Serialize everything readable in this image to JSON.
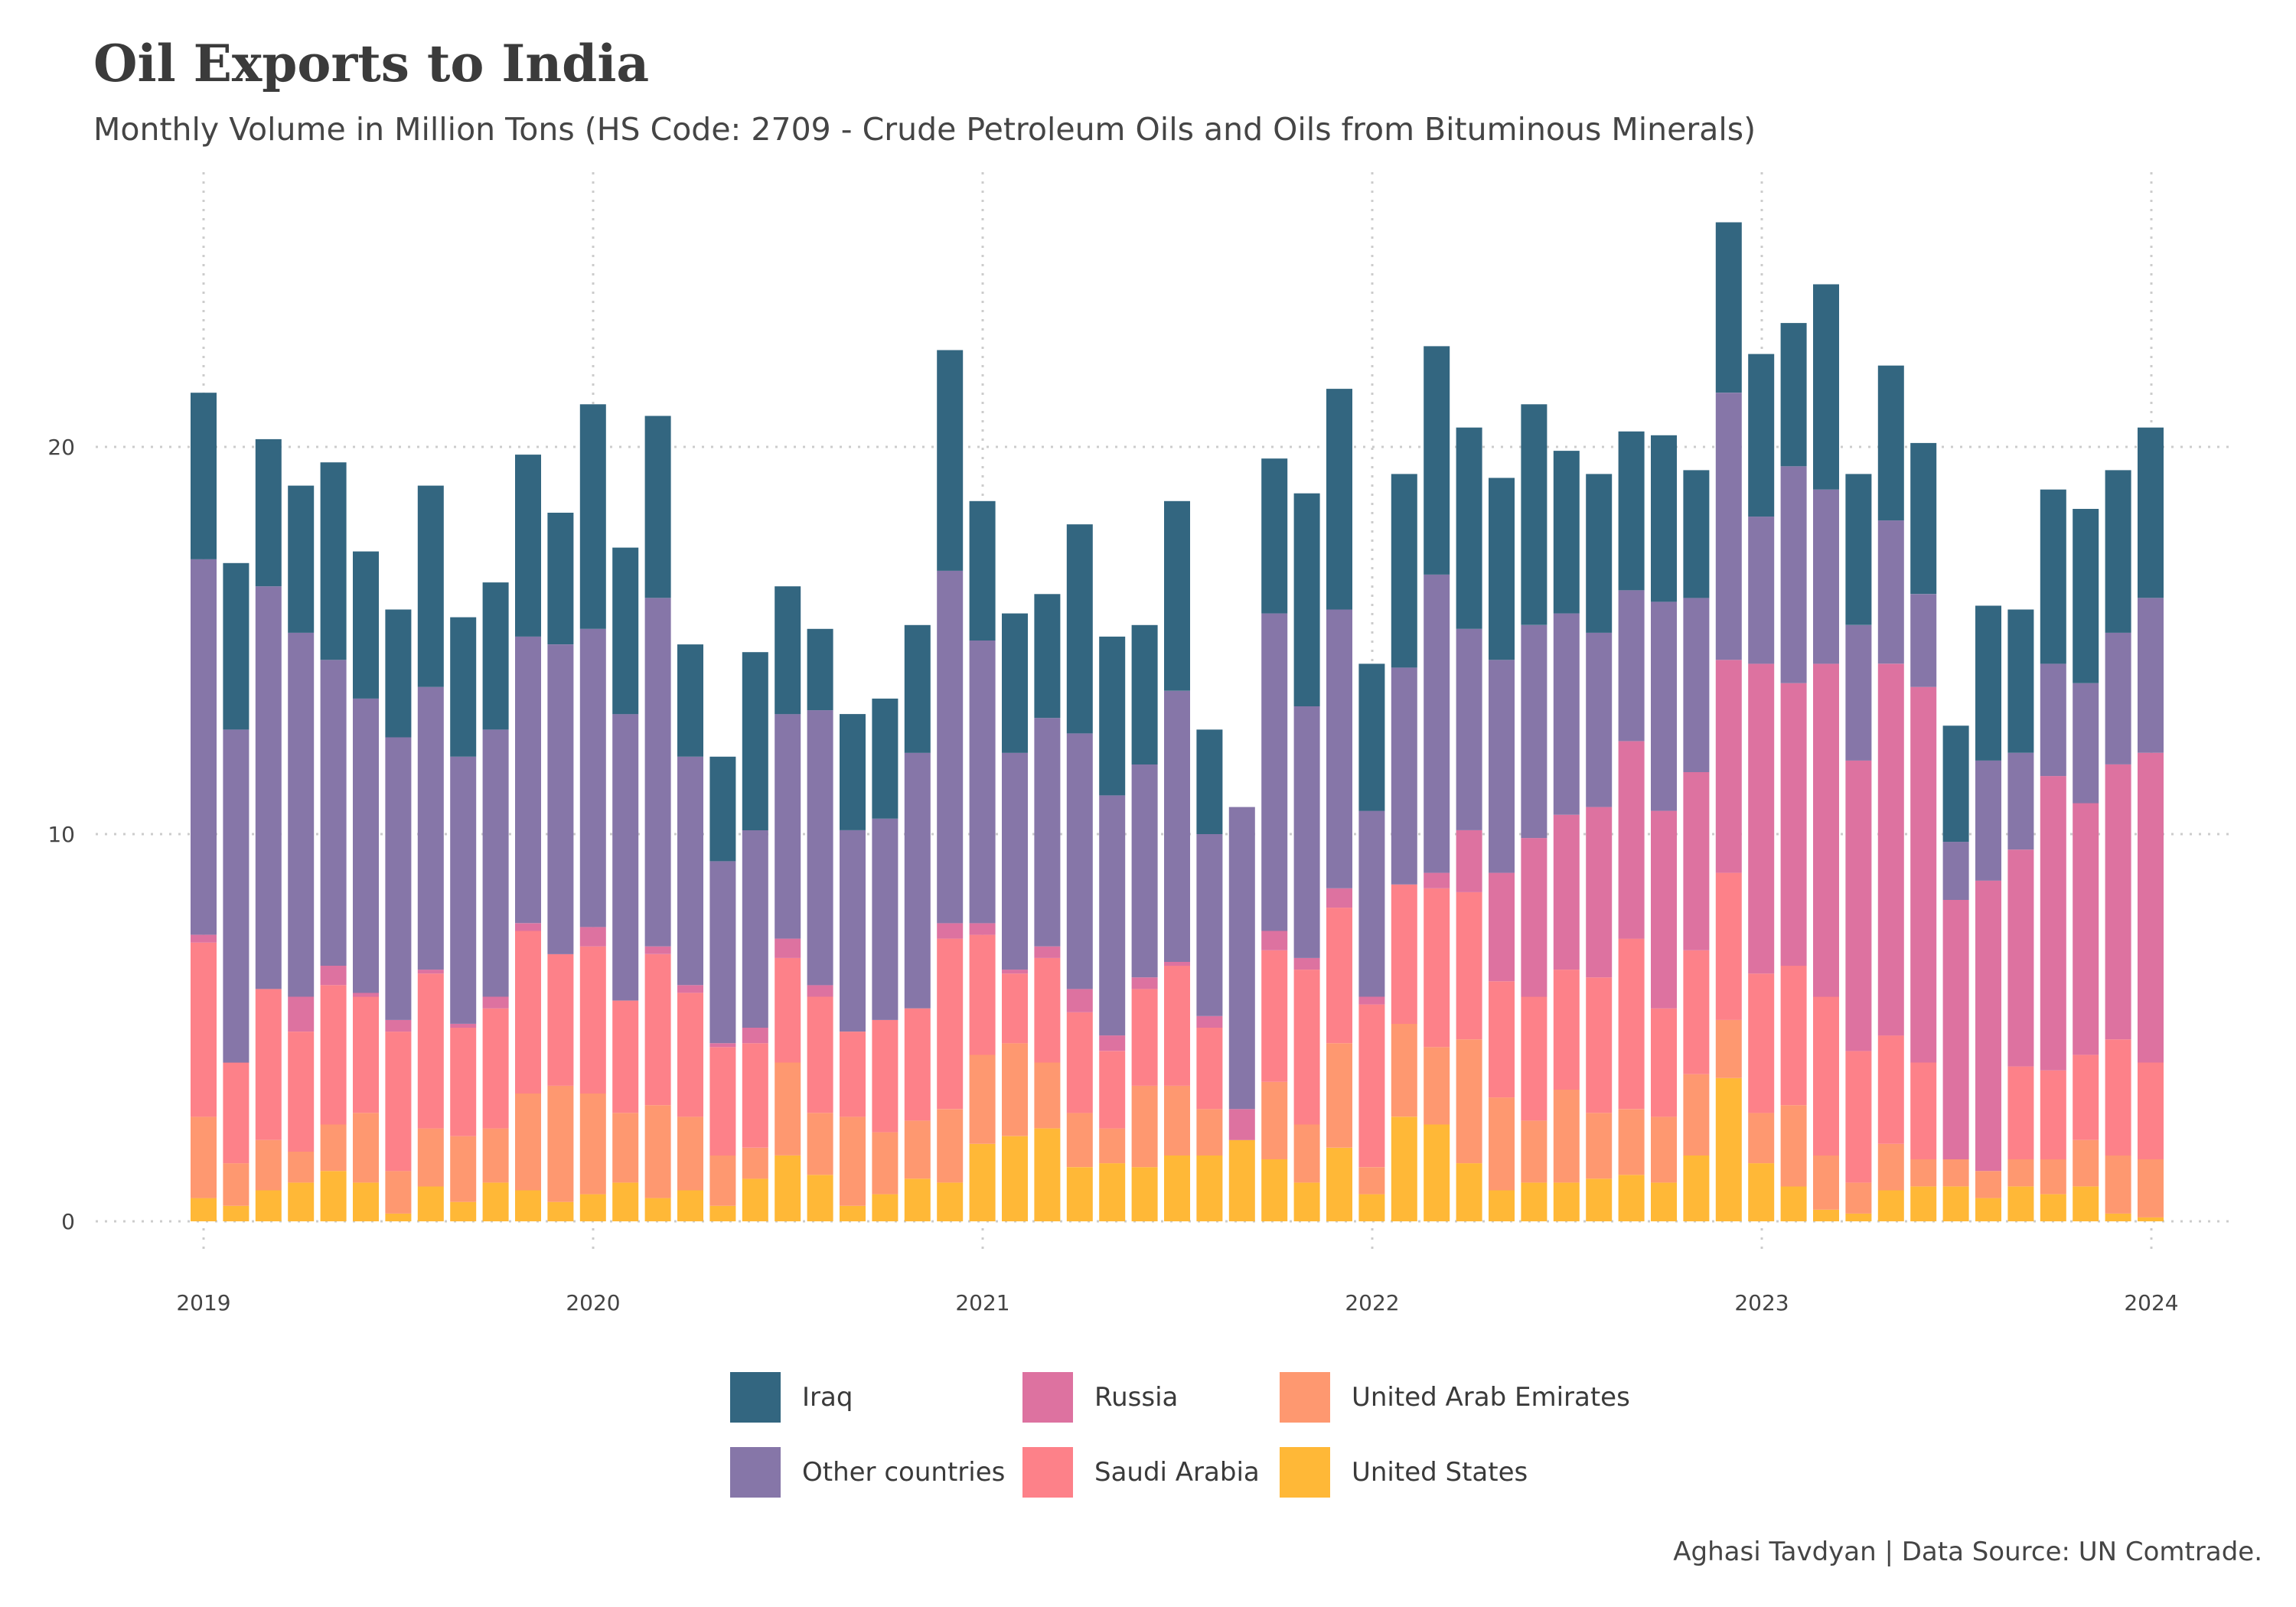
{
  "title": "Oil Exports to India",
  "subtitle": "Monthly Volume in Million Tons (HS Code: 2709 - Crude Petroleum Oils and Oils from Bituminous Minerals)",
  "caption": "Aghasi Tavdyan | Data Source: UN Comtrade.",
  "colors": {
    "Iraq": "#336680",
    "Other countries": "#8676a8",
    "Russia": "#dd72a0",
    "Saudi Arabia": "#fd8189",
    "United Arab Emirates": "#fe9870",
    "United States": "#ffb837",
    "grid": "#cccccc"
  },
  "legend": [
    {
      "name": "Iraq"
    },
    {
      "name": "Russia"
    },
    {
      "name": "United Arab Emirates"
    },
    {
      "name": "Other countries"
    },
    {
      "name": "Saudi Arabia"
    },
    {
      "name": "United States"
    }
  ],
  "chart_data": {
    "type": "bar",
    "stacked": true,
    "xlabel": "",
    "ylabel": "",
    "ylim": [
      0,
      26.5
    ],
    "yticks": [
      0,
      10,
      20
    ],
    "xticks": [
      "2019",
      "2020",
      "2021",
      "2022",
      "2023",
      "2024"
    ],
    "grid": "on (dotted)",
    "legend_position": "bottom",
    "categories": [
      "2019-01",
      "2019-02",
      "2019-03",
      "2019-04",
      "2019-05",
      "2019-06",
      "2019-07",
      "2019-08",
      "2019-09",
      "2019-10",
      "2019-11",
      "2019-12",
      "2020-01",
      "2020-02",
      "2020-03",
      "2020-04",
      "2020-05",
      "2020-06",
      "2020-07",
      "2020-08",
      "2020-09",
      "2020-10",
      "2020-11",
      "2020-12",
      "2021-01",
      "2021-02",
      "2021-03",
      "2021-04",
      "2021-05",
      "2021-06",
      "2021-07",
      "2021-08",
      "2021-09",
      "2021-10",
      "2021-11",
      "2021-12",
      "2022-01",
      "2022-02",
      "2022-03",
      "2022-04",
      "2022-05",
      "2022-06",
      "2022-07",
      "2022-08",
      "2022-09",
      "2022-10",
      "2022-11",
      "2022-12",
      "2023-01",
      "2023-02",
      "2023-03",
      "2023-04",
      "2023-05",
      "2023-06",
      "2023-07",
      "2023-08",
      "2023-09",
      "2023-10",
      "2023-11",
      "2023-12",
      "2024-01"
    ],
    "series": [
      {
        "name": "United States",
        "values": [
          0.6,
          0.4,
          0.8,
          1.0,
          1.3,
          1.0,
          0.2,
          0.9,
          0.5,
          1.0,
          0.8,
          0.5,
          0.7,
          1.0,
          0.6,
          0.8,
          0.4,
          1.1,
          1.7,
          1.2,
          0.4,
          0.7,
          1.1,
          1.0,
          2.0,
          2.2,
          2.4,
          1.4,
          1.5,
          1.4,
          1.7,
          1.7,
          2.1,
          1.6,
          1.0,
          1.9,
          0.7,
          2.7,
          2.5,
          1.5,
          0.8,
          1.0,
          1.0,
          1.1,
          1.2,
          1.0,
          1.7,
          3.7,
          1.5,
          0.9,
          0.3,
          0.2,
          0.8,
          0.9,
          0.9,
          0.6,
          0.9,
          0.7,
          0.9,
          0.2,
          0.1
        ]
      },
      {
        "name": "United Arab Emirates",
        "values": [
          2.1,
          1.1,
          1.3,
          0.8,
          1.2,
          1.8,
          1.1,
          1.5,
          1.7,
          1.4,
          2.5,
          3.0,
          2.6,
          1.8,
          2.4,
          1.9,
          1.3,
          0.8,
          2.4,
          1.6,
          2.3,
          1.6,
          1.5,
          1.9,
          2.3,
          2.4,
          1.7,
          1.4,
          0.9,
          2.1,
          1.8,
          1.2,
          0.0,
          2.0,
          1.5,
          2.7,
          0.7,
          2.4,
          2.0,
          3.2,
          2.4,
          1.6,
          2.4,
          1.7,
          1.7,
          1.7,
          2.1,
          1.5,
          1.3,
          2.1,
          1.4,
          0.8,
          1.2,
          0.7,
          0.7,
          0.7,
          0.7,
          0.9,
          1.2,
          1.5,
          1.5
        ]
      },
      {
        "name": "Saudi Arabia",
        "values": [
          4.5,
          2.6,
          3.9,
          3.1,
          3.6,
          3.0,
          3.6,
          4.0,
          2.8,
          3.1,
          4.2,
          3.4,
          3.8,
          2.9,
          3.9,
          3.2,
          2.8,
          2.7,
          2.7,
          3.0,
          2.2,
          2.9,
          2.9,
          4.4,
          3.1,
          1.8,
          2.7,
          2.6,
          2.0,
          2.5,
          3.1,
          2.1,
          0.0,
          3.4,
          4.0,
          3.5,
          4.2,
          3.6,
          4.1,
          3.8,
          3.0,
          3.2,
          3.1,
          3.5,
          4.4,
          2.8,
          3.2,
          3.8,
          3.6,
          3.6,
          4.1,
          3.4,
          2.8,
          2.5,
          0.0,
          0.0,
          2.4,
          2.3,
          2.2,
          3.0,
          2.5
        ]
      },
      {
        "name": "Russia",
        "values": [
          0.2,
          0.0,
          0.0,
          0.9,
          0.5,
          0.1,
          0.3,
          0.1,
          0.1,
          0.3,
          0.2,
          0.0,
          0.5,
          0.0,
          0.2,
          0.2,
          0.1,
          0.4,
          0.5,
          0.3,
          0.0,
          0.0,
          0.0,
          0.4,
          0.3,
          0.1,
          0.3,
          0.6,
          0.4,
          0.3,
          0.1,
          0.3,
          0.8,
          0.5,
          0.3,
          0.5,
          0.2,
          0.0,
          0.4,
          1.6,
          2.8,
          4.1,
          4.0,
          4.4,
          5.1,
          5.1,
          4.6,
          5.5,
          8.0,
          7.3,
          8.6,
          7.5,
          9.6,
          9.7,
          6.7,
          7.5,
          5.6,
          7.6,
          6.5,
          7.1,
          8.0
        ]
      },
      {
        "name": "Other countries",
        "values": [
          9.7,
          8.6,
          10.4,
          9.4,
          7.9,
          7.6,
          7.3,
          7.3,
          6.9,
          6.9,
          7.4,
          8.0,
          7.7,
          7.4,
          9.0,
          5.9,
          4.7,
          5.1,
          5.8,
          7.1,
          5.2,
          5.2,
          6.6,
          9.1,
          7.3,
          5.6,
          5.9,
          6.6,
          6.2,
          5.5,
          7.0,
          4.7,
          7.8,
          8.2,
          6.5,
          7.2,
          4.8,
          5.6,
          7.7,
          5.2,
          5.5,
          5.5,
          5.2,
          4.5,
          3.9,
          5.4,
          4.5,
          6.9,
          3.8,
          5.6,
          4.5,
          3.5,
          3.7,
          2.4,
          1.5,
          3.1,
          2.5,
          2.9,
          3.1,
          3.4,
          4.0
        ]
      },
      {
        "name": "Iraq",
        "values": [
          4.3,
          4.3,
          3.8,
          3.8,
          5.1,
          3.8,
          3.3,
          5.2,
          3.6,
          3.8,
          4.7,
          3.4,
          5.8,
          4.3,
          4.7,
          2.9,
          2.7,
          4.6,
          3.3,
          2.1,
          3.0,
          3.1,
          3.3,
          5.7,
          3.6,
          3.6,
          3.2,
          5.4,
          4.1,
          3.6,
          4.9,
          2.7,
          0.0,
          4.0,
          5.5,
          5.7,
          3.8,
          5.0,
          5.9,
          5.2,
          4.7,
          5.7,
          4.2,
          4.1,
          4.1,
          4.3,
          3.3,
          4.4,
          4.2,
          3.7,
          5.3,
          3.9,
          4.0,
          3.9,
          3.0,
          4.0,
          3.7,
          4.5,
          4.5,
          4.2,
          4.4
        ]
      }
    ]
  }
}
